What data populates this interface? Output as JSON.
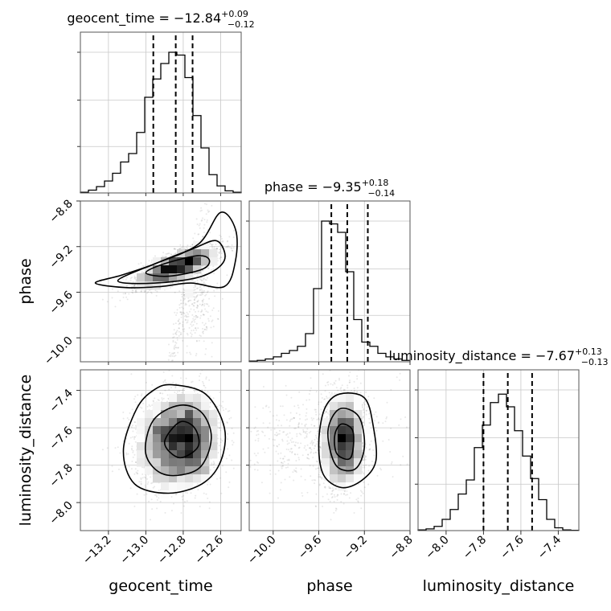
{
  "chart_data": {
    "type": "corner",
    "parameters": [
      {
        "key": "geocent_time",
        "label": "geocent_time",
        "title_prefix": "geocent_time = ",
        "median": "−12.84",
        "plus": "+0.09",
        "minus": "−0.12",
        "range": [
          -13.35,
          -12.49
        ],
        "ticks": [
          -13.2,
          -13.0,
          -12.8,
          -12.6
        ],
        "tick_labels": [
          "−13.2",
          "−13.0",
          "−12.8",
          "−12.6"
        ],
        "quantiles": [
          -12.96,
          -12.84,
          -12.75
        ],
        "hist_bins": [
          0.005,
          0.02,
          0.045,
          0.085,
          0.14,
          0.22,
          0.28,
          0.43,
          0.68,
          0.81,
          0.92,
          1.0,
          0.98,
          0.82,
          0.55,
          0.32,
          0.13,
          0.05,
          0.015,
          0.005
        ]
      },
      {
        "key": "phase",
        "label": "phase",
        "title_prefix": "phase = ",
        "median": "−9.35",
        "plus": "+0.18",
        "minus": "−0.14",
        "range": [
          -10.21,
          -8.8
        ],
        "ticks": [
          -10.0,
          -9.6,
          -9.2,
          -8.8
        ],
        "tick_labels": [
          "−10.0",
          "−9.6",
          "−9.2",
          "−8.8"
        ],
        "quantiles": [
          -9.49,
          -9.35,
          -9.17
        ],
        "hist_bins": [
          0.005,
          0.01,
          0.02,
          0.035,
          0.06,
          0.08,
          0.11,
          0.2,
          0.52,
          1.0,
          0.98,
          0.92,
          0.64,
          0.3,
          0.14,
          0.11,
          0.06,
          0.035,
          0.02,
          0.01
        ]
      },
      {
        "key": "luminosity_distance",
        "label": "luminosity_distance",
        "title_prefix": "luminosity_distance = ",
        "median": "−7.67",
        "plus": "+0.13",
        "minus": "−0.13",
        "range": [
          -8.15,
          -7.29
        ],
        "ticks": [
          -8.0,
          -7.8,
          -7.6,
          -7.4
        ],
        "tick_labels": [
          "−8.0",
          "−7.8",
          "−7.6",
          "−7.4"
        ],
        "quantiles": [
          -7.8,
          -7.67,
          -7.54
        ],
        "hist_bins": [
          0.005,
          0.012,
          0.03,
          0.08,
          0.15,
          0.26,
          0.36,
          0.59,
          0.75,
          0.91,
          0.97,
          0.88,
          0.71,
          0.53,
          0.37,
          0.22,
          0.08,
          0.02,
          0.005,
          0.002
        ]
      }
    ],
    "grid": true,
    "contour_levels": 3
  }
}
